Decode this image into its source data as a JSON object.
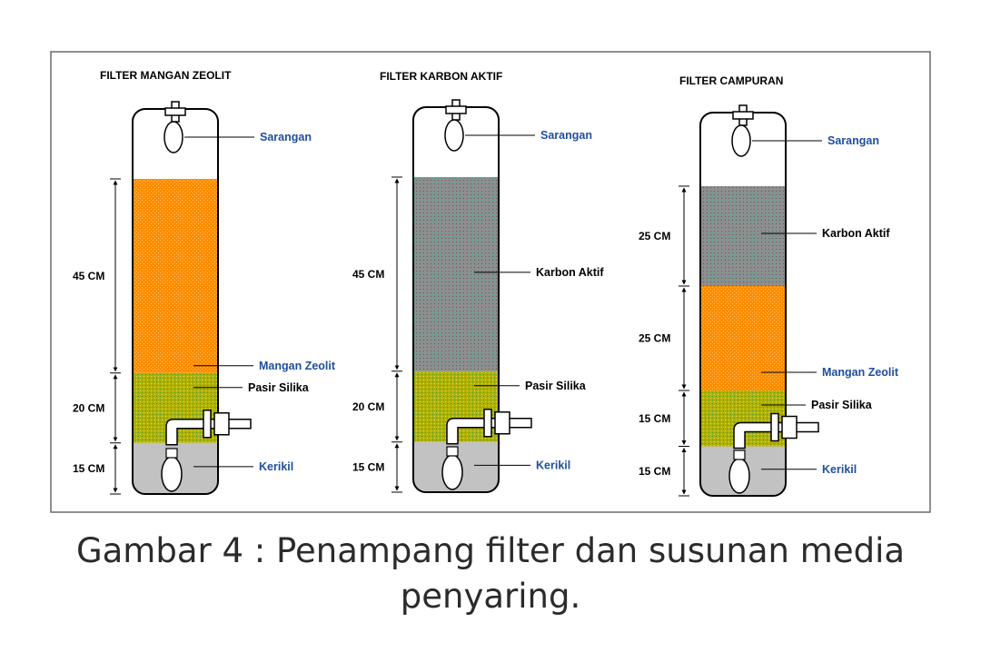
{
  "figure": {
    "caption_line1": "Gambar 4 : Penampang filter dan susunan media",
    "caption_line2": "penyaring.",
    "colors": {
      "zeolite": "#ff8c00",
      "carbon": "#8c8c8c",
      "silica": "#b2b200",
      "gravel": "#c2c2c2",
      "label_blue": "#1f4fa0"
    },
    "filters": [
      {
        "title": "FILTER MANGAN ZEOLIT",
        "layers": [
          {
            "label": "Mangan Zeolit",
            "thickness": "45 CM",
            "cm": 45,
            "material": "zeolite",
            "label_color": "blue"
          },
          {
            "label": "Pasir Silika",
            "thickness": "20 CM",
            "cm": 20,
            "material": "silica",
            "label_color": "black"
          },
          {
            "label": "Kerikil",
            "thickness": "15 CM",
            "cm": 15,
            "material": "gravel",
            "label_color": "blue"
          }
        ],
        "top_label": "Sarangan"
      },
      {
        "title": "FILTER KARBON AKTIF",
        "layers": [
          {
            "label": "Karbon Aktif",
            "thickness": "45 CM",
            "cm": 45,
            "material": "carbon",
            "label_color": "black"
          },
          {
            "label": "Pasir Silika",
            "thickness": "20 CM",
            "cm": 20,
            "material": "silica",
            "label_color": "black"
          },
          {
            "label": "Kerikil",
            "thickness": "15 CM",
            "cm": 15,
            "material": "gravel",
            "label_color": "blue"
          }
        ],
        "top_label": "Sarangan"
      },
      {
        "title": "FILTER CAMPURAN",
        "layers": [
          {
            "label": "Karbon Aktif",
            "thickness": "25 CM",
            "cm": 25,
            "material": "carbon",
            "label_color": "black"
          },
          {
            "label": "Mangan Zeolit",
            "thickness": "25 CM",
            "cm": 25,
            "material": "zeolite",
            "label_color": "blue"
          },
          {
            "label": "Pasir Silika",
            "thickness": "15 CM",
            "cm": 15,
            "material": "silica",
            "label_color": "black"
          },
          {
            "label": "Kerikil",
            "thickness": "15 CM",
            "cm": 15,
            "material": "gravel",
            "label_color": "blue"
          }
        ],
        "top_label": "Sarangan"
      }
    ]
  }
}
